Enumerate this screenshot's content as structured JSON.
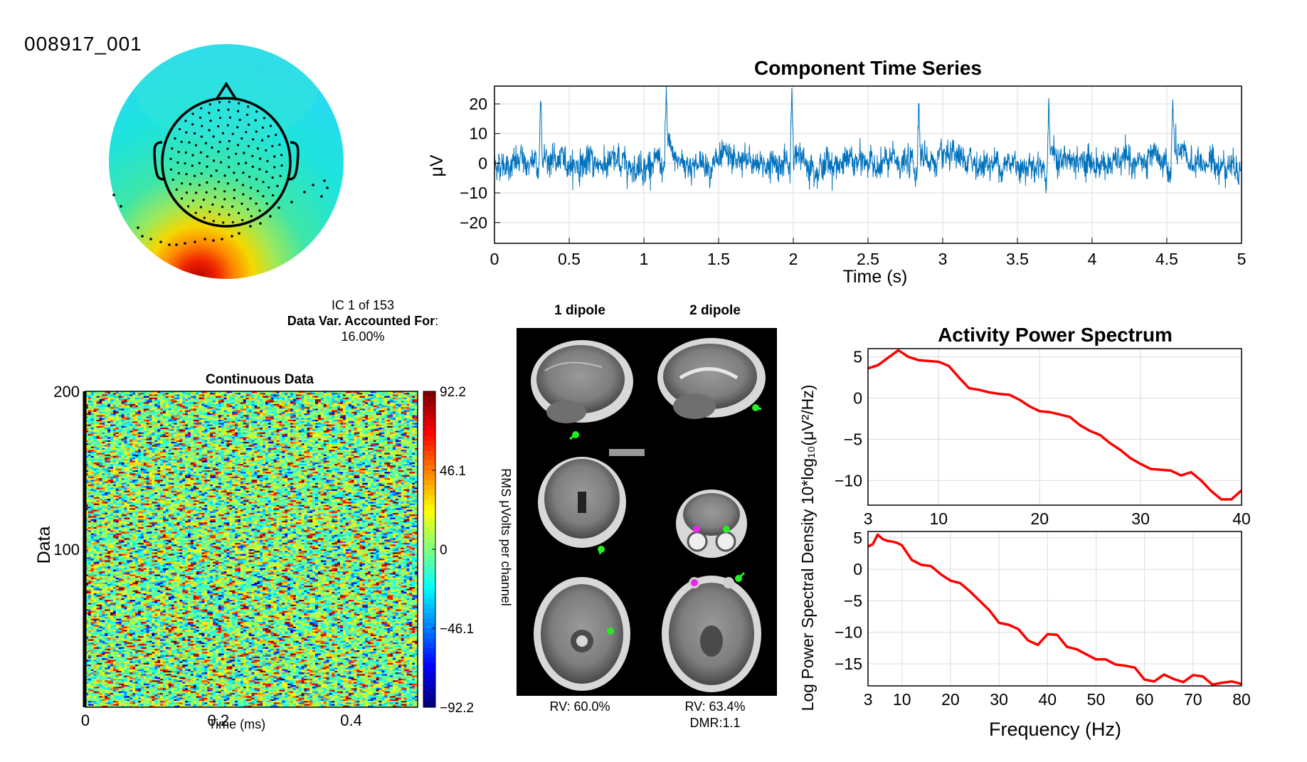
{
  "figure": {
    "dataset_id": "008917_001",
    "ic_label": "IC 1 of 153",
    "var_label": "Data Var. Accounted For",
    "var_suffix": ":",
    "var_value": "16.00%"
  },
  "colors": {
    "timeseries": "#0072BD",
    "spectrum": "#FF0000",
    "dipole_green": "#22EE22",
    "dipole_magenta": "#EE22EE"
  },
  "topomap": {
    "colormap": "jet",
    "electrode_color": "#000000"
  },
  "dipoles": {
    "col1_label": "1 dipole",
    "col2_label": "2 dipole",
    "rv1": "RV: 60.0%",
    "rv2": "RV: 63.4%",
    "dmr2": "DMR:1.1",
    "views": [
      "sagittal",
      "coronal",
      "axial"
    ]
  },
  "colorbar": {
    "ticks": [
      "92.2",
      "46.1",
      "0",
      "-46.1",
      "-92.2"
    ],
    "label": "RMS μVolts per channel",
    "range": [
      -92.2,
      92.2
    ]
  },
  "chart_data": [
    {
      "id": "timeseries",
      "type": "line",
      "title": "Component Time Series",
      "xlabel": "Time (s)",
      "ylabel": "μV",
      "xlim": [
        0,
        5
      ],
      "ylim": [
        -27,
        26
      ],
      "xticks": [
        "0",
        "0.5",
        "1",
        "1.5",
        "2",
        "2.5",
        "3",
        "3.5",
        "4",
        "4.5",
        "5"
      ],
      "yticks": [
        "20",
        "10",
        "0",
        "−10",
        "−20"
      ],
      "ytick_values": [
        20,
        10,
        0,
        -10,
        -20
      ],
      "grid": true,
      "spike_times": [
        0.31,
        1.15,
        1.99,
        2.84,
        3.71,
        4.54
      ],
      "spike_peaks": [
        24,
        25,
        25.5,
        25.5,
        23,
        22
      ],
      "noise_sd": 2.3
    },
    {
      "id": "erpimage",
      "type": "heatmap",
      "title": "Continuous Data",
      "xlabel": "Time (ms)",
      "ylabel": "Data",
      "xlim": [
        0,
        0.5
      ],
      "ylim": [
        0,
        200
      ],
      "xticks": [
        "0",
        "0.2",
        "0.4"
      ],
      "xtick_values": [
        0,
        0.2,
        0.4
      ],
      "yticks": [
        "200",
        "100"
      ],
      "ytick_values": [
        200,
        100
      ]
    },
    {
      "id": "spectrum_top",
      "type": "line",
      "title": "Activity Power Spectrum",
      "xlim": [
        3,
        40
      ],
      "ylim": [
        -13,
        6
      ],
      "xticks": [
        "3",
        "10",
        "20",
        "30",
        "40"
      ],
      "xtick_values": [
        3,
        10,
        20,
        30,
        40
      ],
      "yticks": [
        "5",
        "0",
        "−5",
        "−10"
      ],
      "ytick_values": [
        5,
        0,
        -5,
        -10
      ],
      "grid": true,
      "x": [
        3,
        4,
        5,
        6,
        7,
        8,
        9,
        10,
        11,
        12,
        13,
        14,
        15,
        16,
        17,
        18,
        19,
        20,
        21,
        22,
        23,
        24,
        25,
        26,
        27,
        28,
        29,
        30,
        31,
        32,
        33,
        34,
        35,
        36,
        37,
        38,
        39,
        40
      ],
      "y": [
        3.6,
        4.0,
        4.9,
        5.8,
        5.0,
        4.6,
        4.5,
        4.4,
        3.9,
        2.5,
        1.2,
        1.0,
        0.7,
        0.5,
        0.4,
        -0.2,
        -1.0,
        -1.6,
        -1.7,
        -2.0,
        -2.3,
        -3.3,
        -4.0,
        -4.5,
        -5.5,
        -6.3,
        -7.3,
        -8.0,
        -8.6,
        -8.7,
        -8.8,
        -9.4,
        -9.0,
        -10.0,
        -11.3,
        -12.3,
        -12.3,
        -11.2
      ]
    },
    {
      "id": "spectrum_bottom",
      "type": "line",
      "xlabel": "Frequency (Hz)",
      "ylabel": "Log Power Spectral Density 10*log₁₀(μV²/Hz)",
      "xlim": [
        3,
        80
      ],
      "ylim": [
        -18.5,
        6
      ],
      "xticks": [
        "3",
        "10",
        "20",
        "30",
        "40",
        "50",
        "60",
        "70",
        "80"
      ],
      "xtick_values": [
        3,
        10,
        20,
        30,
        40,
        50,
        60,
        70,
        80
      ],
      "yticks": [
        "5",
        "0",
        "−5",
        "−10",
        "−15"
      ],
      "ytick_values": [
        5,
        0,
        -5,
        -10,
        -15
      ],
      "grid": true,
      "x": [
        3,
        4,
        5,
        6,
        7,
        8,
        9,
        10,
        12,
        14,
        16,
        18,
        20,
        22,
        24,
        26,
        28,
        30,
        32,
        34,
        36,
        38,
        40,
        42,
        44,
        46,
        48,
        50,
        52,
        54,
        56,
        58,
        60,
        62,
        64,
        66,
        68,
        70,
        72,
        74,
        76,
        78,
        80
      ],
      "y": [
        3.6,
        4.0,
        5.5,
        4.8,
        4.5,
        4.4,
        4.2,
        3.8,
        1.5,
        0.7,
        0.5,
        -0.8,
        -1.8,
        -2.2,
        -3.5,
        -5.0,
        -6.5,
        -8.5,
        -8.8,
        -9.5,
        -11.3,
        -12.0,
        -10.3,
        -10.4,
        -12.3,
        -12.7,
        -13.5,
        -14.3,
        -14.3,
        -15.1,
        -15.3,
        -15.6,
        -17.5,
        -17.8,
        -16.7,
        -17.4,
        -17.9,
        -16.8,
        -17.0,
        -18.3,
        -18.0,
        -17.8,
        -18.2
      ]
    }
  ]
}
